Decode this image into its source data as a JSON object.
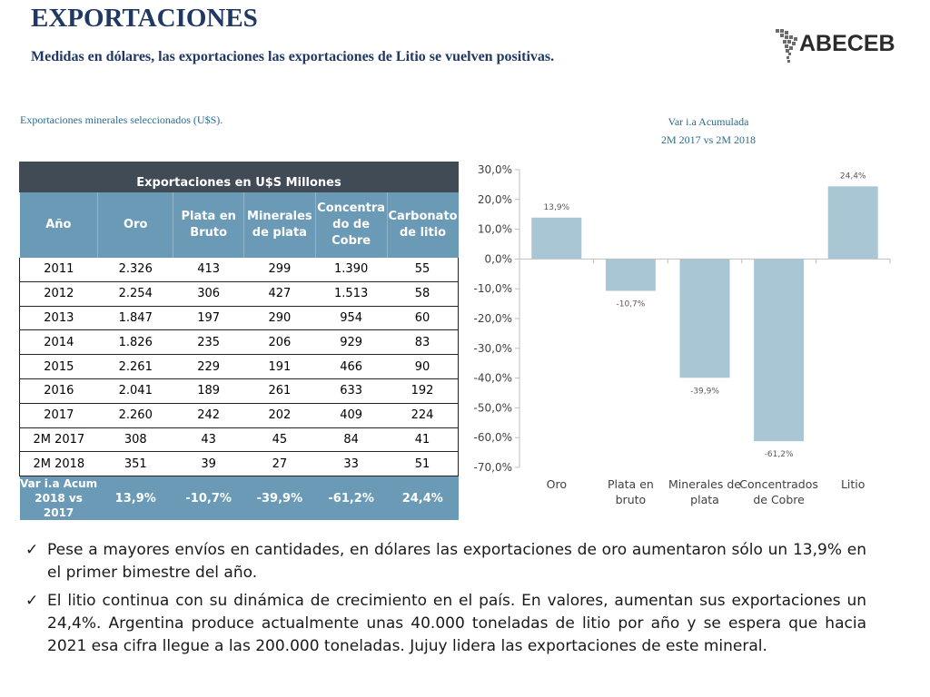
{
  "header": {
    "title": "EXPORTACIONES",
    "subtitle": "Medidas en dólares, las exportaciones las exportaciones de Litio se vuelven positivas.",
    "logo_text": "ABECEB"
  },
  "table": {
    "caption": "Exportaciones minerales seleccionados (U$S).",
    "top_header": "Exportaciones en U$S Millones",
    "columns": [
      "Año",
      "Oro",
      "Plata en Bruto",
      "Minerales de plata",
      "Concentrado de Cobre",
      "Carbonato de litio"
    ],
    "column_lines": [
      [
        "Año"
      ],
      [
        "Oro"
      ],
      [
        "Plata en",
        "Bruto"
      ],
      [
        "Minerales",
        "de plata"
      ],
      [
        "Concentra",
        "do de",
        "Cobre"
      ],
      [
        "Carbonato",
        "de litio"
      ]
    ],
    "rows": [
      [
        "2011",
        "2.326",
        "413",
        "299",
        "1.390",
        "55"
      ],
      [
        "2012",
        "2.254",
        "306",
        "427",
        "1.513",
        "58"
      ],
      [
        "2013",
        "1.847",
        "197",
        "290",
        "954",
        "60"
      ],
      [
        "2014",
        "1.826",
        "235",
        "206",
        "929",
        "83"
      ],
      [
        "2015",
        "2.261",
        "229",
        "191",
        "466",
        "90"
      ],
      [
        "2016",
        "2.041",
        "189",
        "261",
        "633",
        "192"
      ],
      [
        "2017",
        "2.260",
        "242",
        "202",
        "409",
        "224"
      ],
      [
        "2M 2017",
        "308",
        "43",
        "45",
        "84",
        "41"
      ],
      [
        "2M 2018",
        "351",
        "39",
        "27",
        "33",
        "51"
      ]
    ],
    "footer_label_lines": [
      "Var i.a Acum",
      "2018 vs 2017"
    ],
    "footer_values": [
      "13,9%",
      "-10,7%",
      "-39,9%",
      "-61,2%",
      "24,4%"
    ]
  },
  "chart_data": {
    "type": "bar",
    "title_lines": [
      "Var i.a Acumulada",
      "2M 2017 vs 2M 2018"
    ],
    "categories": [
      "Oro",
      "Plata en bruto",
      "Minerales de plata",
      "Concentrados de Cobre",
      "Litio"
    ],
    "category_lines": [
      [
        "Oro"
      ],
      [
        "Plata en",
        "bruto"
      ],
      [
        "Minerales de",
        "plata"
      ],
      [
        "Concentrados",
        "de Cobre"
      ],
      [
        "Litio"
      ]
    ],
    "values": [
      13.9,
      -10.7,
      -39.9,
      -61.2,
      24.4
    ],
    "value_labels": [
      "13,9%",
      "-10,7%",
      "-39,9%",
      "-61,2%",
      "24,4%"
    ],
    "ylim": [
      -70,
      30
    ],
    "yticks": [
      30,
      20,
      10,
      0,
      -10,
      -20,
      -30,
      -40,
      -50,
      -60,
      -70
    ],
    "ytick_labels": [
      "30,0%",
      "20,0%",
      "10,0%",
      "0,0%",
      "-10,0%",
      "-20,0%",
      "-30,0%",
      "-40,0%",
      "-50,0%",
      "-60,0%",
      "-70,0%"
    ],
    "bar_color": "#a9c6d4",
    "grid": false
  },
  "bullets": [
    "Pese a mayores envíos en cantidades, en dólares las exportaciones de oro aumentaron sólo un 13,9% en el primer bimestre del año.",
    "El litio continua con su dinámica de crecimiento en el país. En valores, aumentan sus exportaciones un 24,4%. Argentina produce actualmente unas 40.000 toneladas de litio por año y se espera que hacia 2021 esa cifra llegue a las 200.000 toneladas. Jujuy lidera las exportaciones de este mineral."
  ],
  "colors": {
    "title": "#1f3864",
    "caption": "#2e6b8a",
    "table_top": "#404b55",
    "table_head": "#6a9ab6"
  }
}
